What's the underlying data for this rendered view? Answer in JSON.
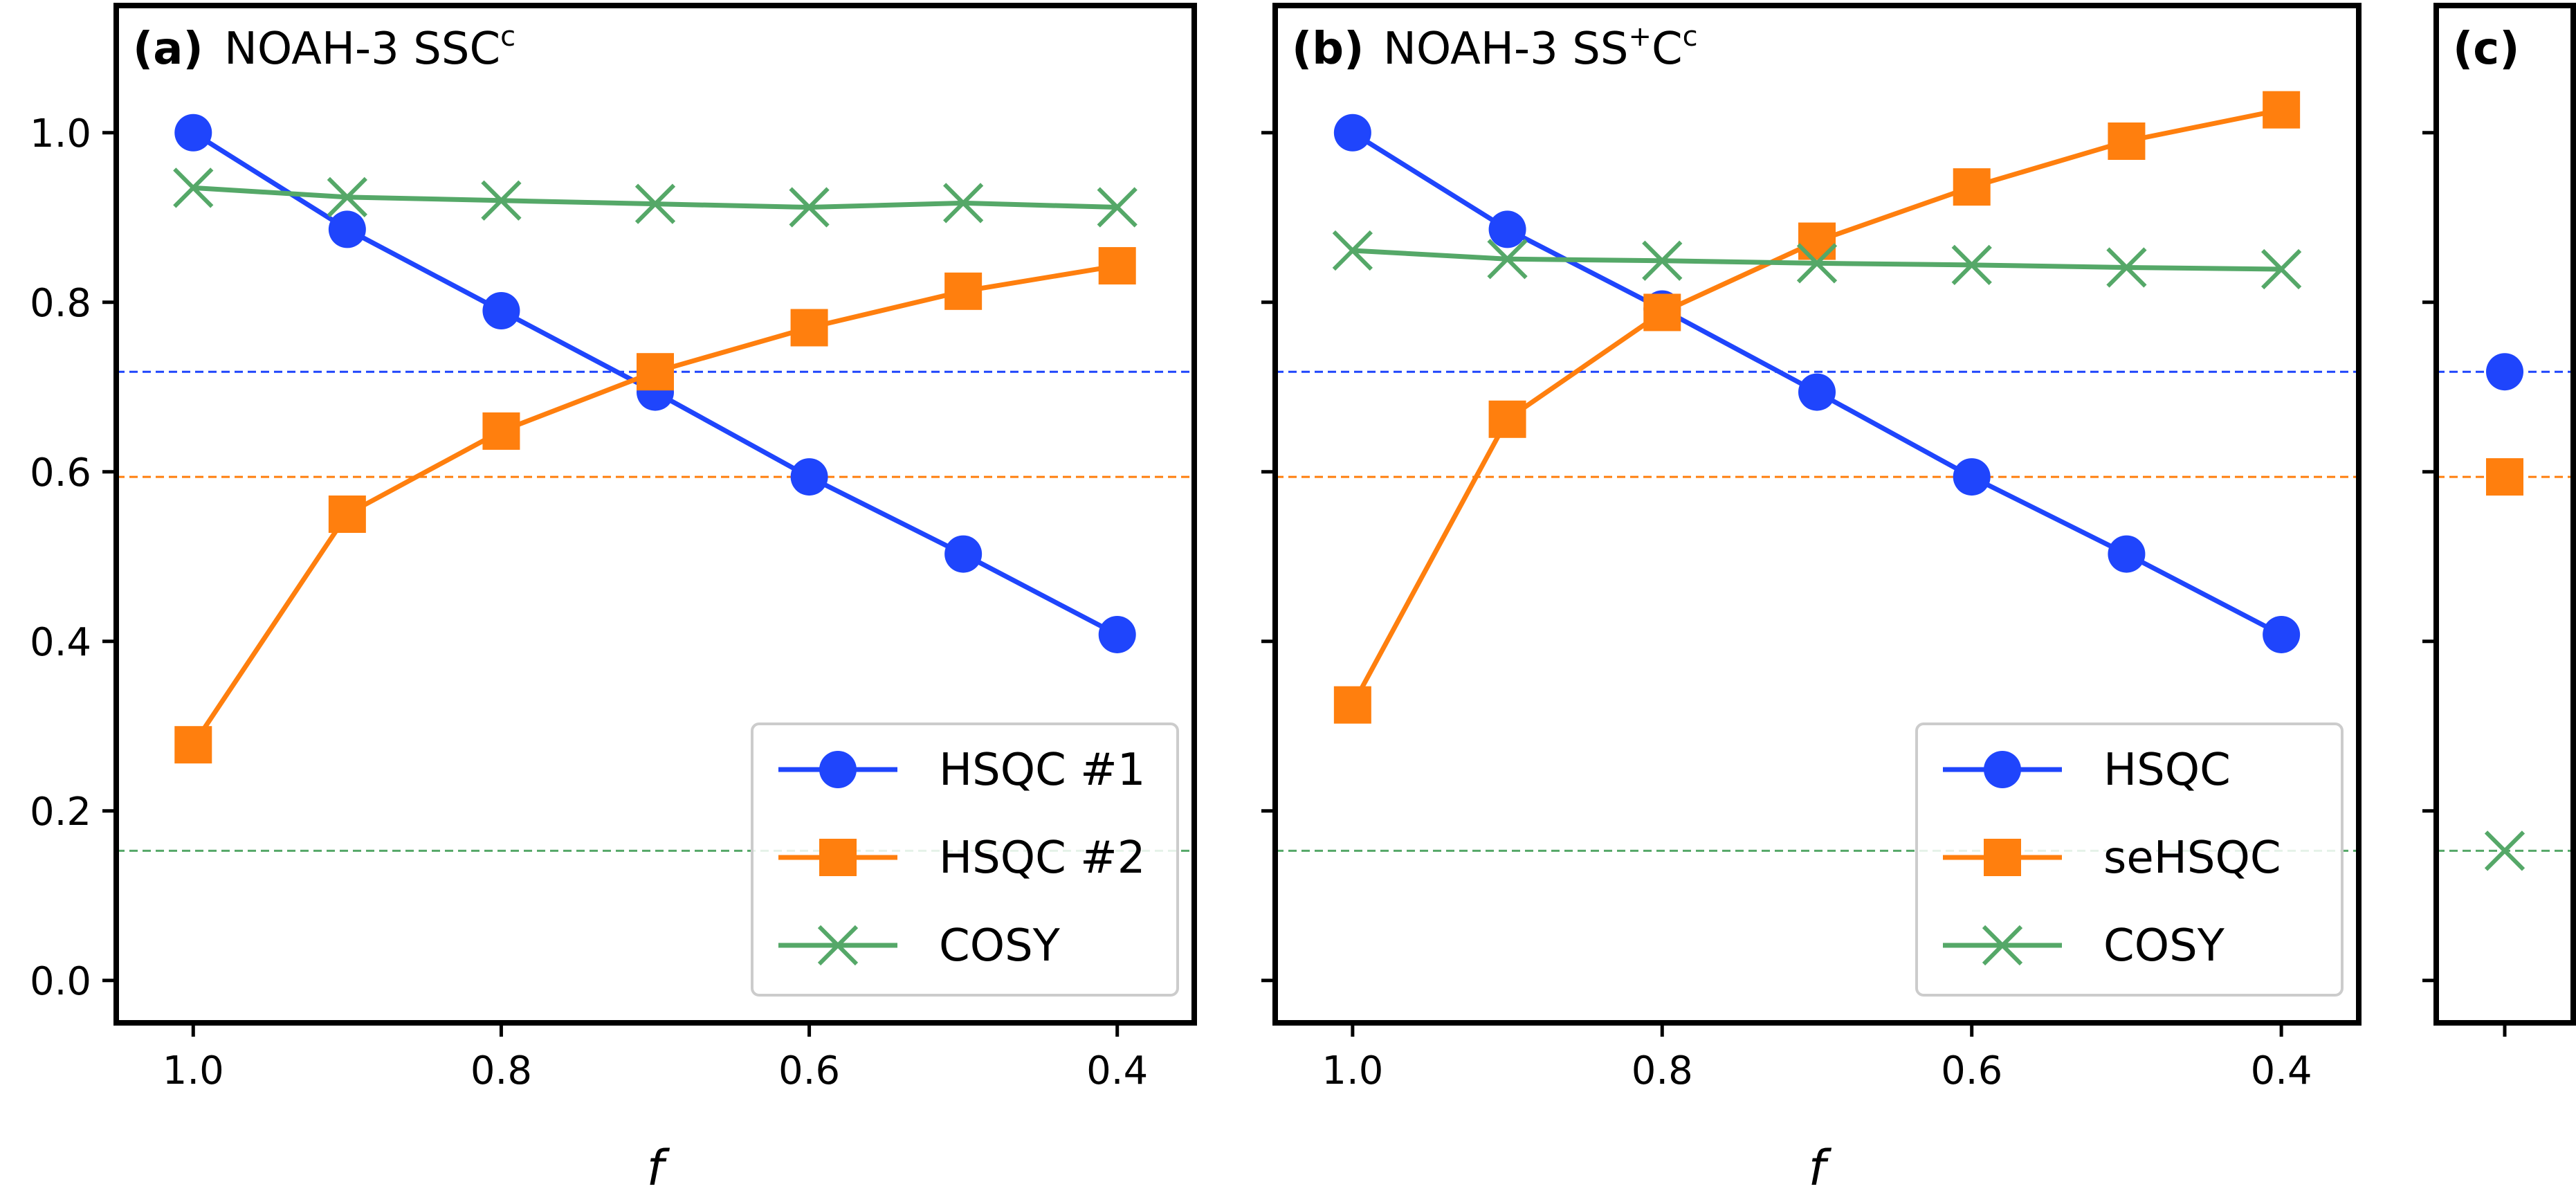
{
  "chart_data": [
    {
      "type": "line",
      "panel": "a",
      "tag": "(a)",
      "title": "NOAH-3 SSC",
      "title_sup": "c",
      "x": [
        1.0,
        0.9,
        0.8,
        0.7,
        0.6,
        0.5,
        0.4
      ],
      "xlabel": "f",
      "xlim": [
        1.05,
        0.35
      ],
      "xticks": [
        1.0,
        0.8,
        0.6,
        0.4
      ],
      "xtick_labels": [
        "1.0",
        "0.8",
        "0.6",
        "0.4"
      ],
      "ylim": [
        -0.05,
        1.15
      ],
      "yticks": [
        0.0,
        0.2,
        0.4,
        0.6,
        0.8,
        1.0
      ],
      "ytick_labels": [
        "0.0",
        "0.2",
        "0.4",
        "0.6",
        "0.8",
        "1.0"
      ],
      "legend_position": "lower-right",
      "series": [
        {
          "name": "HSQC #1",
          "marker": "circle",
          "color": "#1f45fc",
          "values": [
            1.0,
            0.886,
            0.79,
            0.694,
            0.594,
            0.503,
            0.408
          ]
        },
        {
          "name": "HSQC #2",
          "marker": "square",
          "color": "#ff7f0e",
          "values": [
            0.278,
            0.55,
            0.648,
            0.718,
            0.77,
            0.813,
            0.843
          ]
        },
        {
          "name": "COSY",
          "marker": "x",
          "color": "#55a868",
          "values": [
            0.935,
            0.924,
            0.92,
            0.916,
            0.912,
            0.917,
            0.912
          ]
        }
      ],
      "reference_lines": [
        {
          "y": 0.718,
          "color": "#1f45fc"
        },
        {
          "y": 0.594,
          "color": "#ff7f0e"
        },
        {
          "y": 0.153,
          "color": "#55a868"
        }
      ]
    },
    {
      "type": "line",
      "panel": "b",
      "tag": "(b)",
      "title": "NOAH-3 SS",
      "title_sup": "+",
      "title_mid": "C",
      "title_sup2": "c",
      "x": [
        1.0,
        0.9,
        0.8,
        0.7,
        0.6,
        0.5,
        0.4
      ],
      "xlabel": "f",
      "xlim": [
        1.05,
        0.35
      ],
      "xticks": [
        1.0,
        0.8,
        0.6,
        0.4
      ],
      "xtick_labels": [
        "1.0",
        "0.8",
        "0.6",
        "0.4"
      ],
      "ylim": [
        -0.05,
        1.15
      ],
      "legend_position": "lower-right",
      "series": [
        {
          "name": "HSQC",
          "marker": "circle",
          "color": "#1f45fc",
          "values": [
            1.0,
            0.886,
            0.792,
            0.694,
            0.594,
            0.503,
            0.408
          ]
        },
        {
          "name": "seHSQC",
          "marker": "square",
          "color": "#ff7f0e",
          "values": [
            0.325,
            0.662,
            0.788,
            0.872,
            0.936,
            0.99,
            1.027
          ]
        },
        {
          "name": "COSY",
          "marker": "x",
          "color": "#55a868",
          "values": [
            0.861,
            0.851,
            0.849,
            0.846,
            0.844,
            0.841,
            0.839
          ]
        }
      ],
      "reference_lines": [
        {
          "y": 0.718,
          "color": "#1f45fc"
        },
        {
          "y": 0.594,
          "color": "#ff7f0e"
        },
        {
          "y": 0.153,
          "color": "#55a868"
        }
      ]
    },
    {
      "type": "scatter",
      "panel": "c",
      "tag": "(c)",
      "ylim": [
        -0.05,
        1.15
      ],
      "series": [
        {
          "marker": "circle",
          "color": "#1f45fc",
          "value": 0.718
        },
        {
          "marker": "square",
          "color": "#ff7f0e",
          "value": 0.594
        },
        {
          "marker": "x",
          "color": "#55a868",
          "value": 0.153
        }
      ],
      "reference_lines": [
        {
          "y": 0.718,
          "color": "#1f45fc"
        },
        {
          "y": 0.594,
          "color": "#ff7f0e"
        },
        {
          "y": 0.153,
          "color": "#55a868"
        }
      ]
    }
  ]
}
